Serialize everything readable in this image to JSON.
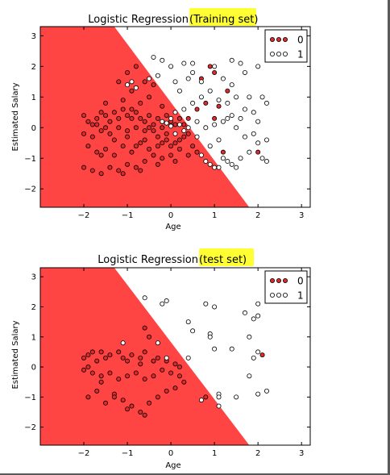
{
  "colors": {
    "region0": "#ff4444",
    "region1": "#ffffff",
    "class0": "#dd2a2a",
    "class1": "#ffffff",
    "highlight": "#ffff33"
  },
  "chart_data": [
    {
      "type": "scatter",
      "title": "Logistic Regression ",
      "title_highlight": "(Training set)",
      "xlabel": "Age",
      "ylabel": "Estimated Salary",
      "xlim": [
        -3,
        3.2
      ],
      "ylim": [
        -2.6,
        3.3
      ],
      "xticks": [
        "−2",
        "−1",
        "0",
        "1",
        "2",
        "3"
      ],
      "yticks": [
        "−2",
        "−1",
        "0",
        "1",
        "2",
        "3"
      ],
      "decision_boundary": {
        "x1": -1.3,
        "y1": 3.3,
        "x2": 1.8,
        "y2": -2.6
      },
      "legend": [
        "0",
        "1"
      ],
      "legend_position": "top-right",
      "grid": false,
      "series": [
        {
          "name": "0",
          "points": [
            [
              -2.0,
              0.4
            ],
            [
              -1.9,
              0.2
            ],
            [
              -1.8,
              0.1
            ],
            [
              -1.7,
              0.3
            ],
            [
              -1.6,
              0.5
            ],
            [
              -1.5,
              0.4
            ],
            [
              -1.4,
              0.2
            ],
            [
              -1.3,
              0.5
            ],
            [
              -1.2,
              0.3
            ],
            [
              -1.1,
              0.6
            ],
            [
              -1.0,
              0.4
            ],
            [
              -0.9,
              0.6
            ],
            [
              -0.8,
              0.5
            ],
            [
              -0.7,
              0.3
            ],
            [
              -0.6,
              0.2
            ],
            [
              -0.5,
              0.4
            ],
            [
              -0.4,
              0.1
            ],
            [
              -0.3,
              0.3
            ],
            [
              -0.2,
              0.2
            ],
            [
              -0.1,
              0.4
            ],
            [
              0.0,
              0.2
            ],
            [
              0.1,
              0.1
            ],
            [
              0.2,
              0.3
            ],
            [
              0.3,
              0.1
            ],
            [
              -0.2,
              0.0
            ],
            [
              -0.4,
              -0.1
            ],
            [
              -0.6,
              -0.1
            ],
            [
              -0.8,
              0.0
            ],
            [
              -1.0,
              -0.1
            ],
            [
              -1.2,
              0.0
            ],
            [
              -1.4,
              -0.2
            ],
            [
              -1.6,
              -0.1
            ],
            [
              -1.8,
              -0.3
            ],
            [
              -2.0,
              -0.2
            ],
            [
              -1.9,
              -0.6
            ],
            [
              -1.7,
              -0.8
            ],
            [
              -1.5,
              -0.7
            ],
            [
              -1.3,
              -0.9
            ],
            [
              -1.1,
              -0.6
            ],
            [
              -0.9,
              -0.8
            ],
            [
              -0.7,
              -0.5
            ],
            [
              -0.5,
              -0.7
            ],
            [
              -0.3,
              -0.6
            ],
            [
              -0.1,
              -0.4
            ],
            [
              0.1,
              -0.5
            ],
            [
              0.3,
              -0.3
            ],
            [
              0.2,
              -0.7
            ],
            [
              0.0,
              -0.9
            ],
            [
              -0.2,
              -1.0
            ],
            [
              -0.4,
              -0.9
            ],
            [
              -0.6,
              -1.1
            ],
            [
              -0.8,
              -1.3
            ],
            [
              -1.0,
              -1.2
            ],
            [
              -1.2,
              -1.4
            ],
            [
              -1.4,
              -1.3
            ],
            [
              -1.6,
              -1.5
            ],
            [
              -1.8,
              -1.4
            ],
            [
              -2.0,
              -1.3
            ],
            [
              -1.1,
              -1.5
            ],
            [
              -0.7,
              -1.4
            ],
            [
              -0.3,
              -1.2
            ],
            [
              0.1,
              -1.1
            ],
            [
              0.4,
              -0.9
            ],
            [
              0.5,
              -0.6
            ],
            [
              0.6,
              -0.8
            ],
            [
              0.4,
              -0.2
            ],
            [
              -1.3,
              -0.4
            ],
            [
              -1.5,
              0.0
            ],
            [
              -0.9,
              0.3
            ],
            [
              -0.5,
              0.0
            ],
            [
              -0.3,
              -0.3
            ],
            [
              -0.1,
              -0.2
            ],
            [
              0.0,
              -0.6
            ],
            [
              -1.7,
              0.1
            ],
            [
              -1.6,
              -0.9
            ],
            [
              -1.0,
              -0.3
            ],
            [
              -0.8,
              -0.6
            ],
            [
              -0.6,
              -0.4
            ],
            [
              -0.2,
              -0.5
            ],
            [
              0.2,
              -0.4
            ],
            [
              -1.1,
              0.9
            ],
            [
              -0.9,
              1.2
            ],
            [
              -0.6,
              1.5
            ],
            [
              -0.4,
              1.4
            ],
            [
              -1.0,
              1.8
            ],
            [
              -0.8,
              2.0
            ],
            [
              -1.2,
              1.5
            ],
            [
              -0.5,
              1.0
            ],
            [
              -0.7,
              0.8
            ],
            [
              0.4,
              0.3
            ],
            [
              0.9,
              2.0
            ],
            [
              1.0,
              1.8
            ],
            [
              1.1,
              0.7
            ],
            [
              1.3,
              1.2
            ],
            [
              0.8,
              0.8
            ],
            [
              2.0,
              -0.8
            ],
            [
              1.0,
              0.3
            ],
            [
              0.6,
              0.6
            ],
            [
              0.7,
              1.6
            ],
            [
              1.2,
              -0.8
            ],
            [
              -1.5,
              0.8
            ],
            [
              -0.2,
              0.7
            ]
          ]
        },
        {
          "name": "1",
          "points": [
            [
              -1.0,
              1.4
            ],
            [
              -0.9,
              1.5
            ],
            [
              -0.8,
              1.3
            ],
            [
              -0.5,
              1.6
            ],
            [
              -0.4,
              2.3
            ],
            [
              -0.2,
              2.2
            ],
            [
              0.0,
              2.0
            ],
            [
              0.3,
              2.1
            ],
            [
              0.5,
              1.8
            ],
            [
              0.7,
              1.5
            ],
            [
              1.0,
              2.0
            ],
            [
              1.2,
              1.6
            ],
            [
              1.4,
              2.2
            ],
            [
              1.6,
              2.1
            ],
            [
              2.0,
              2.0
            ],
            [
              1.5,
              1.0
            ],
            [
              1.8,
              1.0
            ],
            [
              2.1,
              1.0
            ],
            [
              2.2,
              0.8
            ],
            [
              1.7,
              0.6
            ],
            [
              1.9,
              0.5
            ],
            [
              1.3,
              0.3
            ],
            [
              1.5,
              0.0
            ],
            [
              1.7,
              -0.3
            ],
            [
              1.9,
              -0.2
            ],
            [
              2.0,
              0.2
            ],
            [
              2.2,
              -0.4
            ],
            [
              1.8,
              -0.8
            ],
            [
              1.6,
              -1.0
            ],
            [
              1.4,
              -1.2
            ],
            [
              1.2,
              -1.0
            ],
            [
              1.0,
              -1.3
            ],
            [
              0.8,
              -1.1
            ],
            [
              0.7,
              -0.9
            ],
            [
              0.9,
              -0.6
            ],
            [
              1.1,
              -0.4
            ],
            [
              0.6,
              0.2
            ],
            [
              0.4,
              0.0
            ],
            [
              0.2,
              0.1
            ],
            [
              0.0,
              0.3
            ],
            [
              -0.2,
              0.2
            ],
            [
              0.1,
              0.5
            ],
            [
              0.3,
              0.6
            ],
            [
              0.5,
              0.8
            ],
            [
              0.7,
              1.0
            ],
            [
              0.9,
              1.2
            ],
            [
              1.1,
              0.9
            ],
            [
              1.3,
              0.8
            ],
            [
              1.4,
              0.4
            ],
            [
              1.6,
              0.3
            ],
            [
              0.9,
              -1.2
            ],
            [
              1.1,
              -1.3
            ],
            [
              1.3,
              -1.1
            ],
            [
              1.5,
              -1.3
            ],
            [
              2.1,
              -1.0
            ],
            [
              2.2,
              -1.1
            ],
            [
              2.0,
              -0.5
            ],
            [
              0.2,
              1.2
            ],
            [
              0.4,
              1.6
            ],
            [
              0.1,
              1.5
            ],
            [
              0.8,
              0.0
            ],
            [
              0.6,
              -0.3
            ],
            [
              1.0,
              0.1
            ],
            [
              1.2,
              0.2
            ],
            [
              -0.3,
              1.7
            ],
            [
              0.5,
              2.1
            ],
            [
              1.4,
              1.4
            ],
            [
              1.7,
              1.8
            ],
            [
              0.3,
              -0.1
            ],
            [
              0.1,
              -0.2
            ],
            [
              0.0,
              0.05
            ],
            [
              -0.1,
              0.15
            ]
          ]
        }
      ]
    },
    {
      "type": "scatter",
      "title": "Logistic Regression ",
      "title_highlight": "(test set)",
      "xlabel": "Age",
      "ylabel": "Estimated Salary",
      "xlim": [
        -3,
        3.2
      ],
      "ylim": [
        -2.6,
        3.3
      ],
      "xticks": [
        "−2",
        "−1",
        "0",
        "1",
        "2",
        "3"
      ],
      "yticks": [
        "−2",
        "−1",
        "0",
        "1",
        "2",
        "3"
      ],
      "decision_boundary": {
        "x1": -1.3,
        "y1": 3.3,
        "x2": 1.8,
        "y2": -2.6
      },
      "legend": [
        "0",
        "1"
      ],
      "legend_position": "top-right",
      "grid": false,
      "series": [
        {
          "name": "0",
          "points": [
            [
              -2.0,
              0.3
            ],
            [
              -1.9,
              0.4
            ],
            [
              -1.8,
              0.5
            ],
            [
              -1.7,
              0.2
            ],
            [
              -1.6,
              0.5
            ],
            [
              -1.5,
              0.3
            ],
            [
              -1.4,
              0.4
            ],
            [
              -1.2,
              0.5
            ],
            [
              -1.1,
              0.3
            ],
            [
              -1.0,
              0.2
            ],
            [
              -0.9,
              0.4
            ],
            [
              -0.7,
              0.3
            ],
            [
              -0.6,
              0.5
            ],
            [
              -0.4,
              0.2
            ],
            [
              -0.3,
              0.3
            ],
            [
              -0.1,
              0.2
            ],
            [
              0.1,
              0.1
            ],
            [
              0.2,
              0.0
            ],
            [
              -2.0,
              -0.1
            ],
            [
              -1.8,
              -0.2
            ],
            [
              -1.6,
              -0.3
            ],
            [
              -1.4,
              -0.2
            ],
            [
              -1.2,
              -0.4
            ],
            [
              -1.0,
              -0.3
            ],
            [
              -0.8,
              -0.2
            ],
            [
              -0.6,
              -0.4
            ],
            [
              -0.4,
              -0.3
            ],
            [
              -0.2,
              -0.1
            ],
            [
              0.0,
              -0.2
            ],
            [
              0.2,
              -0.3
            ],
            [
              -1.9,
              -1.0
            ],
            [
              -1.7,
              -0.8
            ],
            [
              -1.5,
              -1.2
            ],
            [
              -1.3,
              -0.9
            ],
            [
              -1.1,
              -1.1
            ],
            [
              -0.9,
              -1.3
            ],
            [
              -0.7,
              -1.5
            ],
            [
              -0.5,
              -1.2
            ],
            [
              -0.3,
              -1.0
            ],
            [
              -0.1,
              -0.8
            ],
            [
              0.1,
              -0.7
            ],
            [
              0.3,
              -0.5
            ],
            [
              -1.0,
              -1.4
            ],
            [
              -0.6,
              -1.6
            ],
            [
              -1.3,
              -1.0
            ],
            [
              -0.6,
              1.3
            ],
            [
              -0.5,
              1.0
            ],
            [
              -0.7,
              0.1
            ],
            [
              2.1,
              0.4
            ],
            [
              0.8,
              -1.0
            ],
            [
              -1.9,
              0.0
            ],
            [
              -1.6,
              -0.5
            ]
          ]
        },
        {
          "name": "1",
          "points": [
            [
              -0.6,
              2.3
            ],
            [
              -0.2,
              2.1
            ],
            [
              -0.1,
              2.2
            ],
            [
              0.8,
              2.1
            ],
            [
              1.0,
              2.0
            ],
            [
              0.4,
              1.5
            ],
            [
              0.5,
              1.2
            ],
            [
              0.9,
              1.1
            ],
            [
              0.9,
              1.0
            ],
            [
              -0.3,
              0.8
            ],
            [
              1.0,
              0.6
            ],
            [
              1.4,
              0.6
            ],
            [
              1.7,
              1.8
            ],
            [
              2.0,
              2.1
            ],
            [
              1.9,
              1.6
            ],
            [
              1.8,
              1.0
            ],
            [
              2.0,
              1.7
            ],
            [
              2.0,
              0.5
            ],
            [
              1.9,
              0.3
            ],
            [
              2.2,
              -0.8
            ],
            [
              2.0,
              -0.9
            ],
            [
              1.5,
              -1.0
            ],
            [
              1.1,
              -0.9
            ],
            [
              1.1,
              -1.0
            ],
            [
              1.1,
              -1.3
            ],
            [
              0.7,
              -1.1
            ],
            [
              0.4,
              0.3
            ],
            [
              -0.1,
              0.3
            ],
            [
              1.8,
              -0.3
            ],
            [
              -1.1,
              0.8
            ]
          ]
        }
      ]
    }
  ]
}
